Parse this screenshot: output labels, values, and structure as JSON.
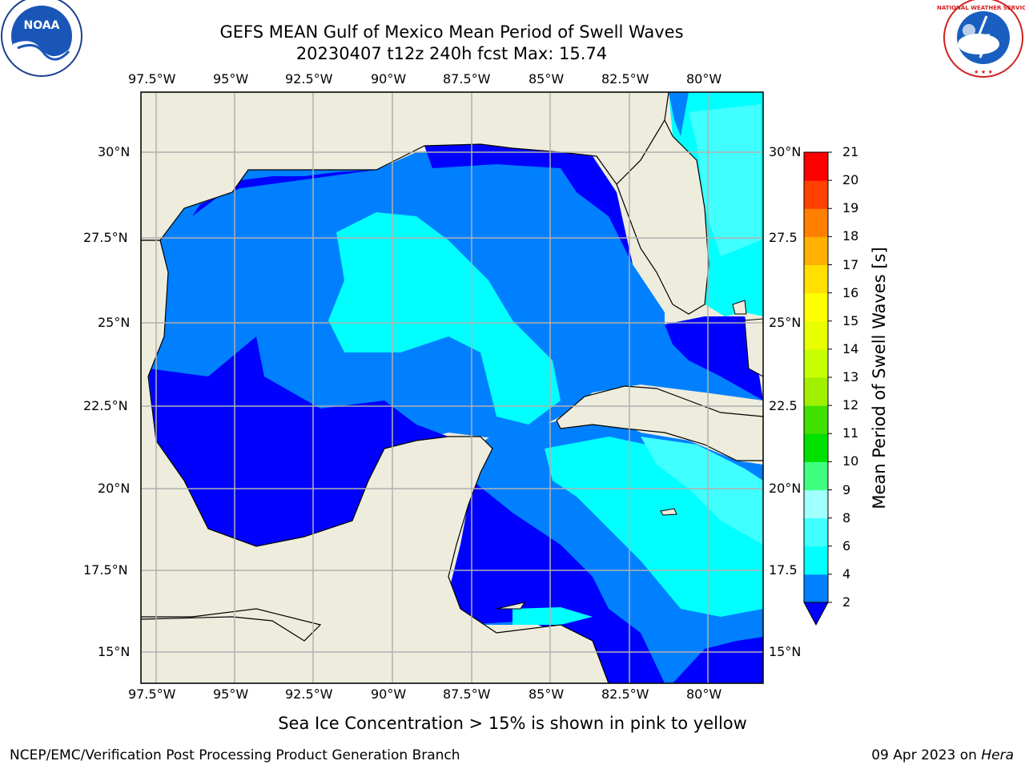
{
  "header": {
    "title_line1": "GEFS MEAN Gulf of Mexico Mean Period of Swell Waves",
    "title_line2": "20230407 t12z 240h fcst   Max: 15.74"
  },
  "map": {
    "lon_labels": [
      "97.5°W",
      "95°W",
      "92.5°W",
      "90°W",
      "87.5°W",
      "85°W",
      "82.5°W",
      "80°W"
    ],
    "lat_labels_left": [
      "30°N",
      "27.5°N",
      "25°N",
      "22.5°N",
      "20°N",
      "17.5°N",
      "15°N"
    ],
    "lat_labels_right": [
      "30°N",
      "27.5",
      "25°N",
      "22.5",
      "20°N",
      "17.5",
      "15°N"
    ],
    "land_color": "#eeecdc",
    "grid_color": "#b0b0b0"
  },
  "colorbar": {
    "title": "Mean Period of Swell Waves [s]",
    "levels": [
      "2",
      "4",
      "6",
      "8",
      "9",
      "10",
      "11",
      "12",
      "13",
      "14",
      "15",
      "16",
      "17",
      "18",
      "19",
      "20",
      "21"
    ],
    "colors": [
      "#0000ff",
      "#0080ff",
      "#00ffff",
      "#40ffff",
      "#a0ffff",
      "#40ff80",
      "#00e000",
      "#40e000",
      "#a0f000",
      "#c8ff00",
      "#e8ff00",
      "#ffff00",
      "#ffe000",
      "#ffb000",
      "#ff8000",
      "#ff4000",
      "#ff0000"
    ]
  },
  "note": "Sea Ice Concentration > 15% is shown in pink to yellow",
  "footer": {
    "left": "NCEP/EMC/Verification Post Processing Product Generation Branch",
    "date": "09 Apr 2023 on ",
    "host": "Hera"
  },
  "logos": {
    "noaa_text": "NOAA",
    "nws_text": "NATIONAL WEATHER SERVICE"
  }
}
